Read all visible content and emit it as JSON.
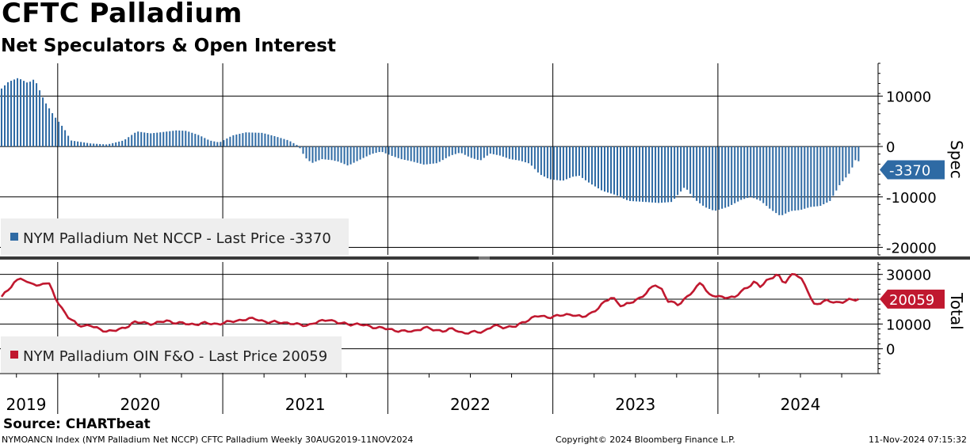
{
  "title": "CFTC Palladium",
  "subtitle": "Net Speculators & Open Interest",
  "source": "Source: CHARTbeat",
  "footer": {
    "left": "NYMOANCN Index (NYM Palladium Net NCCP) CFTC Palladium  Weekly 30AUG2019-11NOV2024",
    "middle": "Copyright© 2024 Bloomberg Finance L.P.",
    "right": "11-Nov-2024 07:15:32"
  },
  "colors": {
    "spec": "#2e6aa4",
    "total": "#c0182f",
    "grid": "#000000",
    "legend_bg": "#eeeeee"
  },
  "chart_data": [
    {
      "type": "bar",
      "panel": "top",
      "axis_title": "Spec",
      "legend": "NYM Palladium Net NCCP - Last Price -3370",
      "last_label": "-3370",
      "yticks": [
        -20000,
        -10000,
        0,
        10000
      ],
      "ytick_labels": [
        "-20000",
        "-10000",
        "0",
        "10000"
      ],
      "ylim": [
        -21500,
        16500
      ],
      "x_start": 2019.66,
      "x_end": 2024.86,
      "keypoints": [
        [
          2019.66,
          11500
        ],
        [
          2019.7,
          12800
        ],
        [
          2019.76,
          13600
        ],
        [
          2019.82,
          12600
        ],
        [
          2019.86,
          13400
        ],
        [
          2019.92,
          9000
        ],
        [
          2019.98,
          6000
        ],
        [
          2020.04,
          3500
        ],
        [
          2020.08,
          1200
        ],
        [
          2020.2,
          600
        ],
        [
          2020.3,
          400
        ],
        [
          2020.4,
          1200
        ],
        [
          2020.48,
          3000
        ],
        [
          2020.56,
          2600
        ],
        [
          2020.62,
          2800
        ],
        [
          2020.72,
          3200
        ],
        [
          2020.78,
          3100
        ],
        [
          2020.86,
          2200
        ],
        [
          2020.92,
          1200
        ],
        [
          2020.98,
          800
        ],
        [
          2021.06,
          2200
        ],
        [
          2021.14,
          2800
        ],
        [
          2021.24,
          2700
        ],
        [
          2021.32,
          2000
        ],
        [
          2021.4,
          1200
        ],
        [
          2021.46,
          100
        ],
        [
          2021.5,
          -2200
        ],
        [
          2021.54,
          -3300
        ],
        [
          2021.6,
          -2500
        ],
        [
          2021.66,
          -2700
        ],
        [
          2021.7,
          -3000
        ],
        [
          2021.76,
          -3800
        ],
        [
          2021.82,
          -2800
        ],
        [
          2021.9,
          -1500
        ],
        [
          2021.96,
          -1000
        ],
        [
          2022.02,
          -1800
        ],
        [
          2022.08,
          -2500
        ],
        [
          2022.14,
          -2900
        ],
        [
          2022.22,
          -3600
        ],
        [
          2022.3,
          -3300
        ],
        [
          2022.38,
          -1800
        ],
        [
          2022.44,
          -1200
        ],
        [
          2022.5,
          -2200
        ],
        [
          2022.56,
          -2800
        ],
        [
          2022.62,
          -1400
        ],
        [
          2022.68,
          -1800
        ],
        [
          2022.74,
          -2500
        ],
        [
          2022.8,
          -2800
        ],
        [
          2022.86,
          -3400
        ],
        [
          2022.92,
          -5500
        ],
        [
          2022.98,
          -6500
        ],
        [
          2023.06,
          -6800
        ],
        [
          2023.12,
          -6000
        ],
        [
          2023.16,
          -5800
        ],
        [
          2023.22,
          -7200
        ],
        [
          2023.3,
          -8800
        ],
        [
          2023.38,
          -9600
        ],
        [
          2023.46,
          -10800
        ],
        [
          2023.56,
          -11000
        ],
        [
          2023.64,
          -11200
        ],
        [
          2023.72,
          -11000
        ],
        [
          2023.8,
          -8000
        ],
        [
          2023.86,
          -10500
        ],
        [
          2023.92,
          -12000
        ],
        [
          2023.98,
          -12800
        ],
        [
          2024.06,
          -12000
        ],
        [
          2024.14,
          -10600
        ],
        [
          2024.2,
          -10000
        ],
        [
          2024.26,
          -10800
        ],
        [
          2024.32,
          -12500
        ],
        [
          2024.38,
          -13800
        ],
        [
          2024.44,
          -12800
        ],
        [
          2024.5,
          -12600
        ],
        [
          2024.56,
          -12000
        ],
        [
          2024.62,
          -11800
        ],
        [
          2024.68,
          -10800
        ],
        [
          2024.74,
          -7500
        ],
        [
          2024.8,
          -5200
        ],
        [
          2024.84,
          -2200
        ],
        [
          2024.86,
          -3370
        ]
      ]
    },
    {
      "type": "line",
      "panel": "bottom",
      "axis_title": "Total",
      "legend": "NYM Palladium OIN F&O - Last Price 20059",
      "last_label": "20059",
      "yticks": [
        0,
        10000,
        20000,
        30000
      ],
      "ytick_labels": [
        "0",
        "10000",
        "",
        "30000"
      ],
      "ylim": [
        -10000,
        35000
      ],
      "keypoints": [
        [
          2019.66,
          21000
        ],
        [
          2019.7,
          23500
        ],
        [
          2019.74,
          27000
        ],
        [
          2019.78,
          29000
        ],
        [
          2019.82,
          26000
        ],
        [
          2019.86,
          26500
        ],
        [
          2019.88,
          25000
        ],
        [
          2019.92,
          27000
        ],
        [
          2019.95,
          26000
        ],
        [
          2019.98,
          21000
        ],
        [
          2020.02,
          17000
        ],
        [
          2020.06,
          13000
        ],
        [
          2020.12,
          9500
        ],
        [
          2020.2,
          9400
        ],
        [
          2020.26,
          7500
        ],
        [
          2020.34,
          7200
        ],
        [
          2020.4,
          8200
        ],
        [
          2020.46,
          10800
        ],
        [
          2020.52,
          10400
        ],
        [
          2020.58,
          10200
        ],
        [
          2020.66,
          11200
        ],
        [
          2020.74,
          10400
        ],
        [
          2020.8,
          9800
        ],
        [
          2020.88,
          10300
        ],
        [
          2020.96,
          10000
        ],
        [
          2021.04,
          10800
        ],
        [
          2021.12,
          11800
        ],
        [
          2021.2,
          12100
        ],
        [
          2021.28,
          10600
        ],
        [
          2021.36,
          10800
        ],
        [
          2021.44,
          9800
        ],
        [
          2021.52,
          9600
        ],
        [
          2021.58,
          10800
        ],
        [
          2021.64,
          12000
        ],
        [
          2021.7,
          10300
        ],
        [
          2021.78,
          10000
        ],
        [
          2021.86,
          9500
        ],
        [
          2021.94,
          8500
        ],
        [
          2022.02,
          7800
        ],
        [
          2022.1,
          6900
        ],
        [
          2022.16,
          7200
        ],
        [
          2022.22,
          8500
        ],
        [
          2022.28,
          7700
        ],
        [
          2022.34,
          7200
        ],
        [
          2022.4,
          8000
        ],
        [
          2022.46,
          6300
        ],
        [
          2022.52,
          6600
        ],
        [
          2022.58,
          7100
        ],
        [
          2022.64,
          9200
        ],
        [
          2022.7,
          8800
        ],
        [
          2022.78,
          9000
        ],
        [
          2022.84,
          11500
        ],
        [
          2022.9,
          13200
        ],
        [
          2022.96,
          12800
        ],
        [
          2023.04,
          13300
        ],
        [
          2023.12,
          14000
        ],
        [
          2023.18,
          12600
        ],
        [
          2023.24,
          14700
        ],
        [
          2023.3,
          18000
        ],
        [
          2023.36,
          21000
        ],
        [
          2023.42,
          17000
        ],
        [
          2023.48,
          18800
        ],
        [
          2023.56,
          22000
        ],
        [
          2023.62,
          26000
        ],
        [
          2023.66,
          24000
        ],
        [
          2023.7,
          19000
        ],
        [
          2023.76,
          17800
        ],
        [
          2023.82,
          21500
        ],
        [
          2023.86,
          23500
        ],
        [
          2023.9,
          27500
        ],
        [
          2023.94,
          22000
        ],
        [
          2024.0,
          20800
        ],
        [
          2024.06,
          21000
        ],
        [
          2024.1,
          20600
        ],
        [
          2024.16,
          24000
        ],
        [
          2024.22,
          27000
        ],
        [
          2024.26,
          24800
        ],
        [
          2024.3,
          27800
        ],
        [
          2024.36,
          30200
        ],
        [
          2024.4,
          26000
        ],
        [
          2024.46,
          31000
        ],
        [
          2024.5,
          28500
        ],
        [
          2024.54,
          24000
        ],
        [
          2024.58,
          18000
        ],
        [
          2024.66,
          19200
        ],
        [
          2024.72,
          18800
        ],
        [
          2024.76,
          19000
        ],
        [
          2024.8,
          19600
        ],
        [
          2024.86,
          20059
        ]
      ]
    }
  ],
  "x_axis": {
    "year_labels": [
      {
        "label": "2019",
        "center": 2019.835
      },
      {
        "label": "2020",
        "center": 2020.5
      },
      {
        "label": "2021",
        "center": 2021.5
      },
      {
        "label": "2022",
        "center": 2022.5
      },
      {
        "label": "2023",
        "center": 2023.5
      },
      {
        "label": "2024",
        "center": 2024.5
      }
    ],
    "year_boundaries": [
      2020.0,
      2021.0,
      2022.0,
      2023.0,
      2024.0
    ]
  }
}
